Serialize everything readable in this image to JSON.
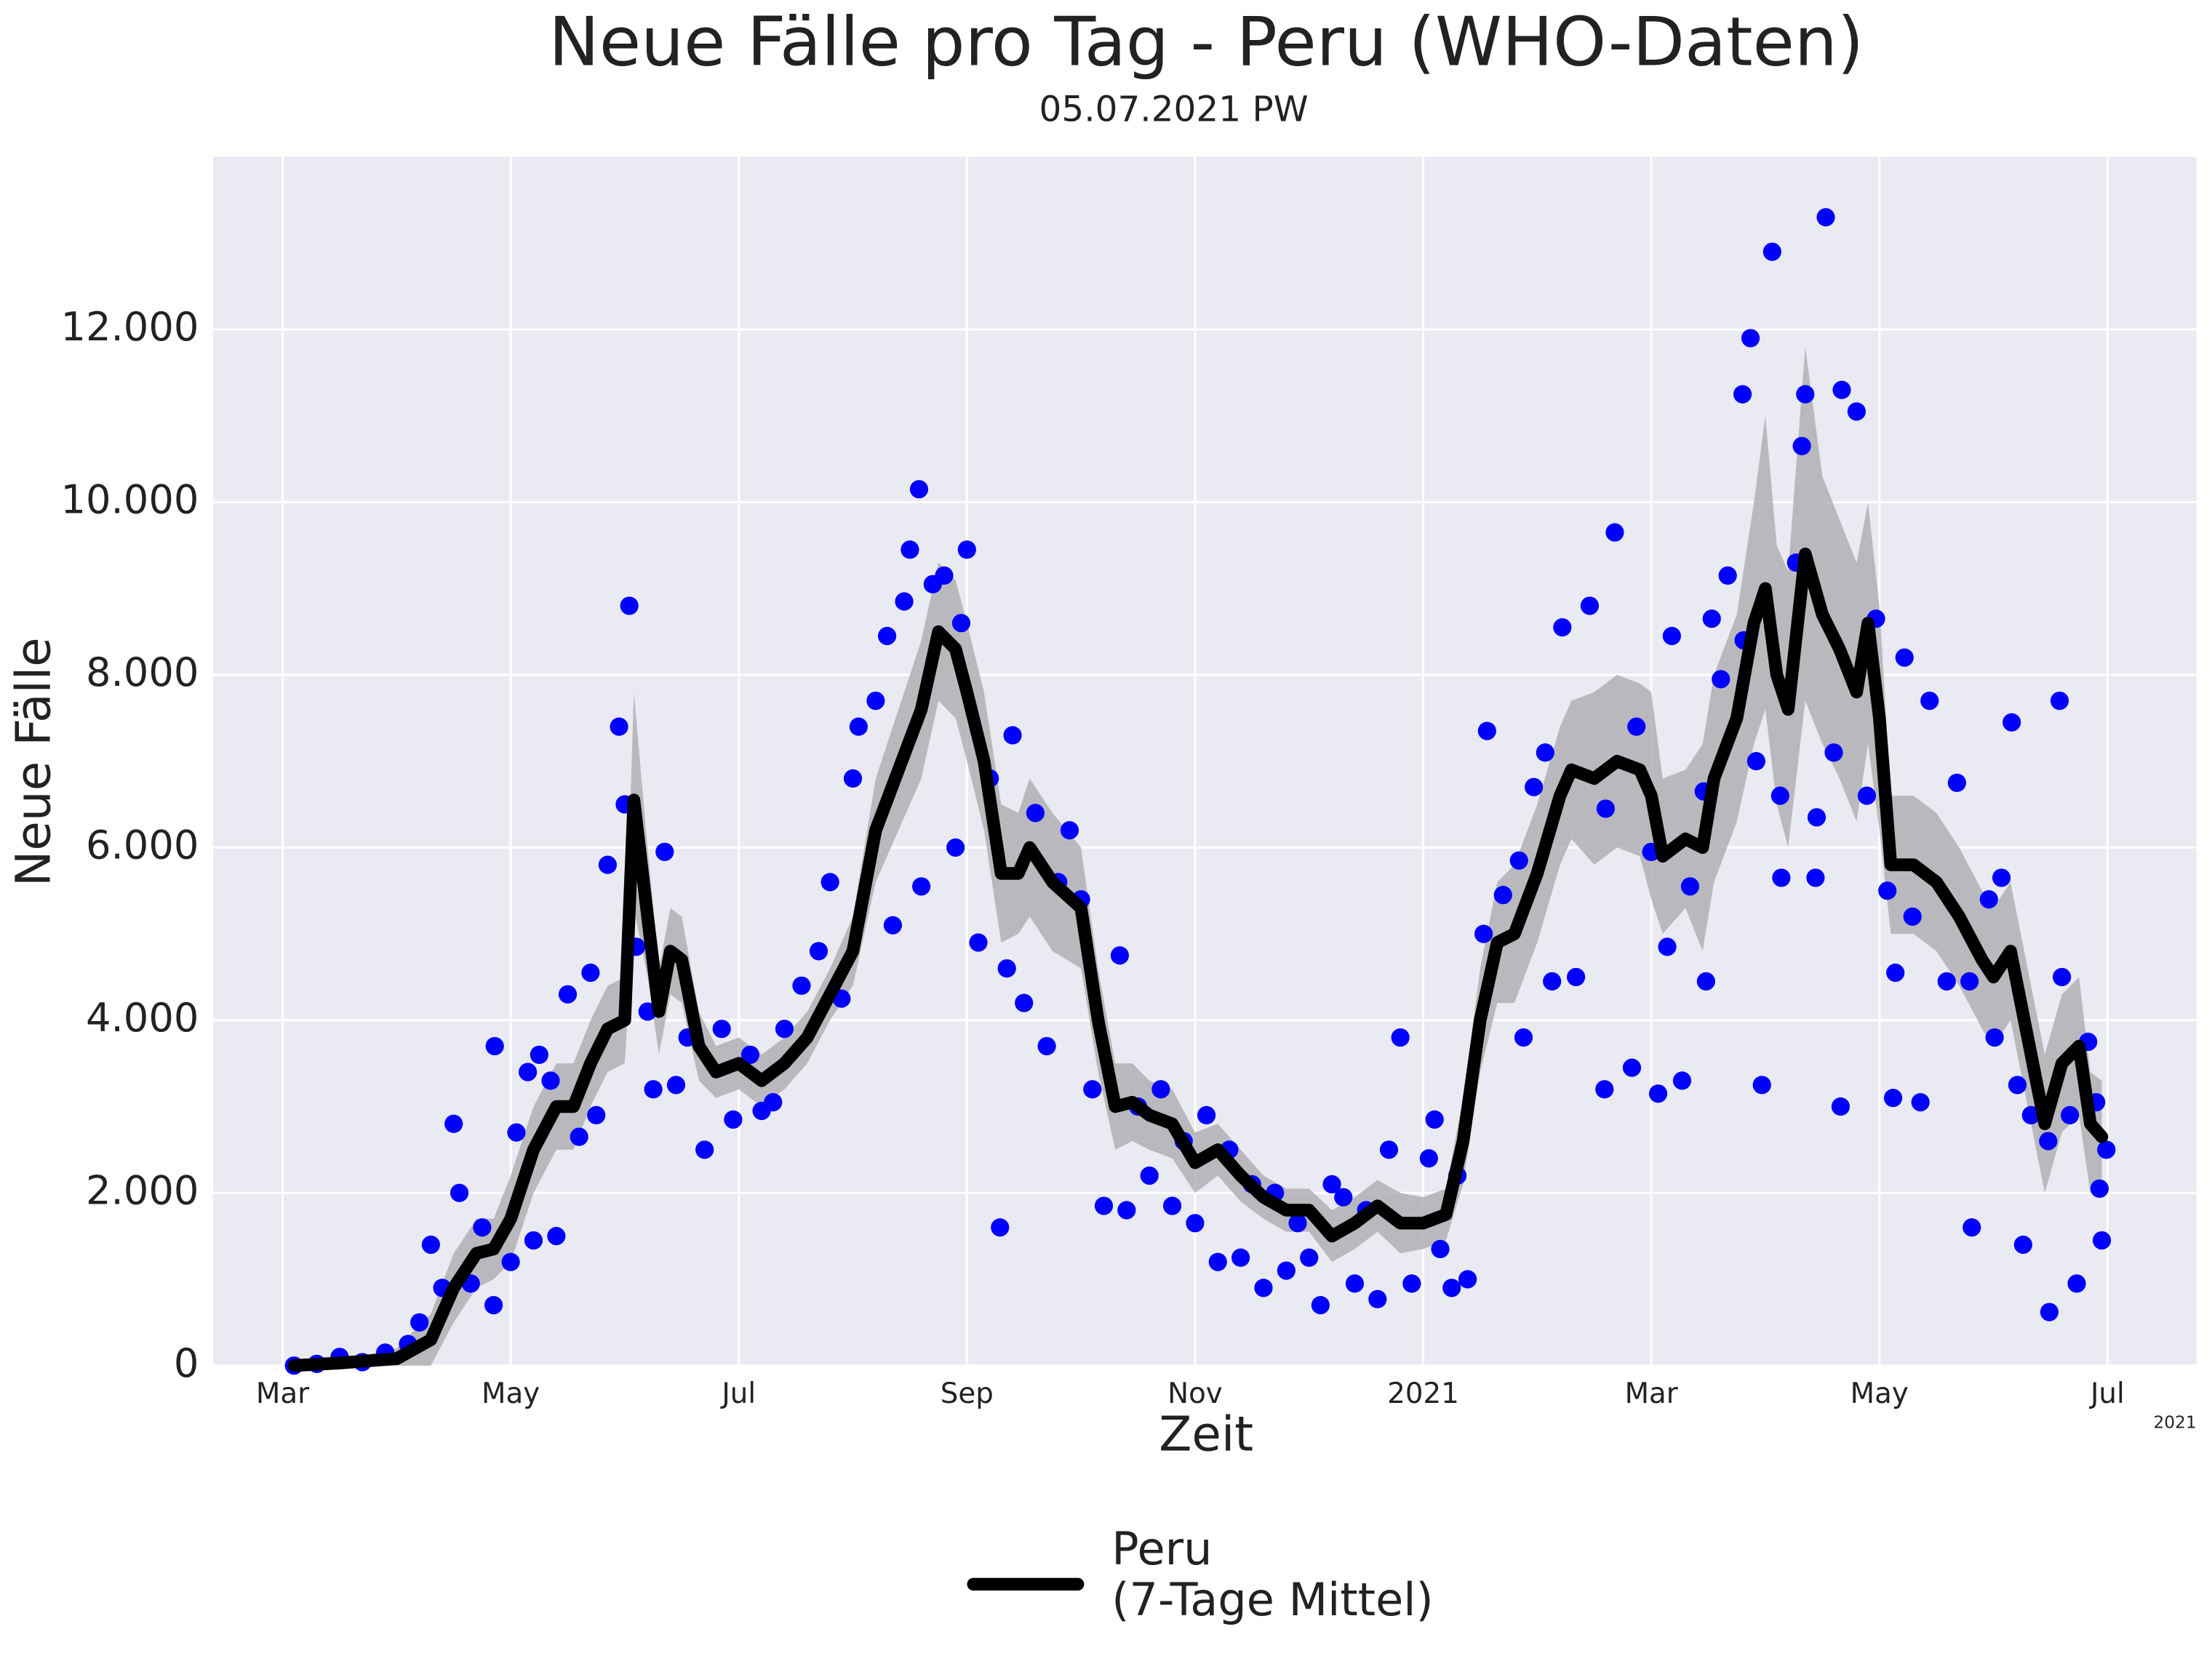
{
  "chart_data": {
    "type": "line",
    "title": "Neue Fälle pro Tag - Peru (WHO-Daten)",
    "subtitle": "05.07.2021 PW",
    "x_label": "Zeit",
    "y_label": "Neue Fälle",
    "x_offset_label": "2021",
    "grid": true,
    "background": "#eaeaf2",
    "legend": "bottom",
    "xlim": [
      2.39,
      19.78
    ],
    "xticks": [
      {
        "value": 3,
        "label": "Mar"
      },
      {
        "value": 5,
        "label": "May"
      },
      {
        "value": 7,
        "label": "Jul"
      },
      {
        "value": 9,
        "label": "Sep"
      },
      {
        "value": 11,
        "label": "Nov"
      },
      {
        "value": 13,
        "label": "2021"
      },
      {
        "value": 15,
        "label": "Mar"
      },
      {
        "value": 17,
        "label": "May"
      },
      {
        "value": 19,
        "label": "Jul"
      }
    ],
    "ylim": [
      0,
      14000
    ],
    "yticks": [
      0,
      {
        "value": 2000,
        "label": "2.000"
      },
      {
        "value": 4000,
        "label": "4.000"
      },
      {
        "value": 6000,
        "label": "6.000"
      },
      {
        "value": 8000,
        "label": "8.000"
      },
      {
        "value": 10000,
        "label": "10.000"
      },
      {
        "value": 12000,
        "label": "12.000"
      }
    ],
    "series": [
      {
        "type": "scatter",
        "color": "#0000ff",
        "x": [
          3.1,
          3.3,
          3.5,
          3.7,
          3.9,
          4.1,
          4.2,
          4.3,
          4.4,
          4.5,
          4.55,
          4.65,
          4.75,
          4.85,
          4.86,
          5.0,
          5.05,
          5.15,
          5.2,
          5.25,
          5.35,
          5.4,
          5.5,
          5.6,
          5.7,
          5.75,
          5.85,
          5.95,
          6.0,
          6.04,
          6.1,
          6.2,
          6.25,
          6.35,
          6.45,
          6.55,
          6.7,
          6.85,
          6.95,
          7.1,
          7.2,
          7.3,
          7.4,
          7.55,
          7.7,
          7.8,
          7.9,
          8.0,
          8.05,
          8.2,
          8.3,
          8.35,
          8.45,
          8.5,
          8.58,
          8.6,
          8.7,
          8.8,
          8.9,
          8.95,
          9.0,
          9.1,
          9.2,
          9.29,
          9.35,
          9.4,
          9.5,
          9.6,
          9.7,
          9.8,
          9.9,
          10.0,
          10.1,
          10.2,
          10.34,
          10.4,
          10.5,
          10.6,
          10.7,
          10.8,
          10.9,
          11.0,
          11.1,
          11.2,
          11.3,
          11.4,
          11.5,
          11.6,
          11.7,
          11.8,
          11.9,
          12.0,
          12.1,
          12.2,
          12.3,
          12.4,
          12.5,
          12.6,
          12.7,
          12.8,
          12.9,
          13.05,
          13.1,
          13.15,
          13.25,
          13.3,
          13.39,
          13.53,
          13.56,
          13.7,
          13.84,
          13.88,
          13.97,
          14.07,
          14.13,
          14.22,
          14.34,
          14.46,
          14.59,
          14.6,
          14.68,
          14.83,
          14.87,
          15.0,
          15.06,
          15.14,
          15.18,
          15.27,
          15.34,
          15.46,
          15.48,
          15.53,
          15.61,
          15.67,
          15.8,
          15.81,
          15.87,
          15.92,
          15.97,
          16.06,
          16.13,
          16.14,
          16.27,
          16.32,
          16.35,
          16.44,
          16.45,
          16.53,
          16.6,
          16.66,
          16.67,
          16.8,
          16.89,
          16.97,
          17.07,
          17.12,
          17.14,
          17.22,
          17.29,
          17.36,
          17.44,
          17.59,
          17.68,
          17.79,
          17.81,
          17.96,
          18.01,
          18.07,
          18.16,
          18.21,
          18.26,
          18.33,
          18.48,
          18.49,
          18.58,
          18.6,
          18.67,
          18.73,
          18.83,
          18.9,
          18.93,
          18.95,
          18.99
        ],
        "values": [
          0,
          20,
          100,
          40,
          150,
          250,
          500,
          1400,
          900,
          2800,
          2000,
          950,
          1600,
          700,
          3700,
          1200,
          2700,
          3400,
          1450,
          3600,
          3300,
          1500,
          4300,
          2650,
          4550,
          2900,
          5800,
          7400,
          6500,
          8800,
          4850,
          4100,
          3200,
          5950,
          3250,
          3800,
          2500,
          3900,
          2850,
          3600,
          2950,
          3050,
          3900,
          4400,
          4800,
          5600,
          4250,
          6800,
          7400,
          7700,
          8450,
          5100,
          8850,
          9450,
          10150,
          5550,
          9050,
          9150,
          6000,
          8600,
          9450,
          4900,
          6800,
          1600,
          4600,
          7300,
          4200,
          6400,
          3700,
          5600,
          6200,
          5400,
          3200,
          1850,
          4750,
          1800,
          3000,
          2200,
          3200,
          1850,
          2600,
          1650,
          2900,
          1200,
          2500,
          1250,
          2100,
          900,
          2000,
          1100,
          1650,
          1250,
          700,
          2100,
          1950,
          950,
          1800,
          770,
          2500,
          3800,
          950,
          2400,
          2850,
          1350,
          900,
          2200,
          1000,
          5000,
          7350,
          5450,
          5850,
          3800,
          6700,
          7100,
          4450,
          8550,
          4500,
          8800,
          3200,
          6450,
          9650,
          3450,
          7400,
          5950,
          3150,
          4850,
          8450,
          3300,
          5550,
          6650,
          4450,
          8650,
          7950,
          9150,
          11250,
          8400,
          11900,
          7000,
          3250,
          12900,
          6600,
          5650,
          9300,
          10650,
          11250,
          5650,
          6350,
          13300,
          7100,
          3000,
          11300,
          11050,
          6600,
          8650,
          5500,
          3100,
          4550,
          8200,
          5200,
          3050,
          7700,
          4450,
          6750,
          4450,
          1600,
          5400,
          3800,
          5650,
          7450,
          3250,
          1400,
          2900,
          2600,
          620,
          7700,
          4500,
          2900,
          950,
          3750,
          3050,
          2050,
          1450,
          2500
        ]
      },
      {
        "type": "line",
        "name": "Peru\n(7-Tage Mittel)",
        "color": "#000000",
        "x": [
          3.1,
          3.5,
          4.0,
          4.3,
          4.5,
          4.7,
          4.85,
          5.0,
          5.2,
          5.4,
          5.55,
          5.7,
          5.85,
          6.0,
          6.08,
          6.2,
          6.3,
          6.4,
          6.5,
          6.65,
          6.8,
          7.0,
          7.2,
          7.4,
          7.6,
          7.8,
          8.0,
          8.2,
          8.4,
          8.6,
          8.75,
          8.9,
          9.0,
          9.15,
          9.3,
          9.45,
          9.55,
          9.75,
          10.0,
          10.15,
          10.3,
          10.45,
          10.6,
          10.8,
          11.0,
          11.2,
          11.4,
          11.6,
          11.8,
          12.0,
          12.2,
          12.4,
          12.6,
          12.8,
          13.0,
          13.2,
          13.35,
          13.5,
          13.65,
          13.8,
          14.0,
          14.2,
          14.3,
          14.5,
          14.7,
          14.9,
          15.0,
          15.1,
          15.3,
          15.45,
          15.55,
          15.75,
          15.9,
          16.0,
          16.1,
          16.2,
          16.35,
          16.5,
          16.65,
          16.8,
          16.9,
          17.0,
          17.1,
          17.3,
          17.5,
          17.7,
          17.9,
          18.0,
          18.15,
          18.3,
          18.45,
          18.6,
          18.75,
          18.85,
          18.95
        ],
        "values": [
          0,
          30,
          80,
          300,
          900,
          1300,
          1350,
          1700,
          2500,
          3000,
          3000,
          3500,
          3900,
          4000,
          6550,
          5200,
          4100,
          4800,
          4700,
          3700,
          3400,
          3500,
          3300,
          3500,
          3800,
          4300,
          4800,
          6200,
          6900,
          7600,
          8500,
          8300,
          7800,
          7000,
          5700,
          5700,
          6000,
          5600,
          5300,
          4000,
          3000,
          3050,
          2900,
          2800,
          2350,
          2500,
          2200,
          1950,
          1800,
          1800,
          1500,
          1650,
          1850,
          1650,
          1650,
          1750,
          2600,
          4000,
          4900,
          5000,
          5700,
          6600,
          6900,
          6800,
          7000,
          6900,
          6600,
          5900,
          6100,
          6000,
          6800,
          7500,
          8600,
          9000,
          8000,
          7600,
          9400,
          8700,
          8300,
          7800,
          8600,
          7500,
          5800,
          5800,
          5600,
          5200,
          4700,
          4500,
          4800,
          3800,
          2800,
          3500,
          3700,
          2800,
          2650
        ],
        "band": {
          "color": "#b0b0b4",
          "lower": [
            0,
            0,
            0,
            0,
            500,
            900,
            1000,
            1200,
            2000,
            2500,
            2500,
            3000,
            3400,
            3500,
            5300,
            4500,
            3600,
            4300,
            4200,
            3300,
            3100,
            3200,
            3000,
            3200,
            3500,
            4000,
            4400,
            5600,
            6200,
            6800,
            7700,
            7500,
            7000,
            6200,
            4900,
            5000,
            5200,
            4800,
            4600,
            3400,
            2500,
            2600,
            2500,
            2400,
            2000,
            2200,
            1900,
            1700,
            1550,
            1550,
            1200,
            1350,
            1550,
            1300,
            1350,
            1450,
            2100,
            3400,
            4200,
            4200,
            4900,
            5800,
            6100,
            5800,
            6000,
            5900,
            5400,
            5000,
            5300,
            4800,
            5600,
            6300,
            7200,
            7600,
            6500,
            6000,
            7700,
            7200,
            6800,
            6300,
            7200,
            6200,
            5000,
            5000,
            4800,
            4400,
            3900,
            3700,
            4000,
            3000,
            2000,
            2700,
            2900,
            2000,
            2000
          ],
          "upper": [
            0,
            60,
            200,
            600,
            1300,
            1700,
            1700,
            2200,
            3000,
            3500,
            3500,
            4000,
            4400,
            4500,
            7800,
            6000,
            4600,
            5300,
            5200,
            4100,
            3700,
            3800,
            3600,
            3800,
            4100,
            4600,
            5200,
            6800,
            7600,
            8400,
            9300,
            9100,
            8600,
            7800,
            6500,
            6400,
            6800,
            6400,
            6000,
            4600,
            3500,
            3500,
            3300,
            3200,
            2700,
            2800,
            2500,
            2200,
            2050,
            2050,
            1800,
            1950,
            2150,
            2000,
            1950,
            2050,
            3100,
            4600,
            5600,
            5800,
            6500,
            7400,
            7700,
            7800,
            8000,
            7900,
            7800,
            6800,
            6900,
            7200,
            8000,
            8700,
            10000,
            11000,
            9500,
            9200,
            11800,
            10300,
            9800,
            9300,
            10000,
            8800,
            6600,
            6600,
            6400,
            6000,
            5500,
            5300,
            5600,
            4600,
            3600,
            4300,
            4500,
            3400,
            3300
          ]
        }
      }
    ]
  }
}
